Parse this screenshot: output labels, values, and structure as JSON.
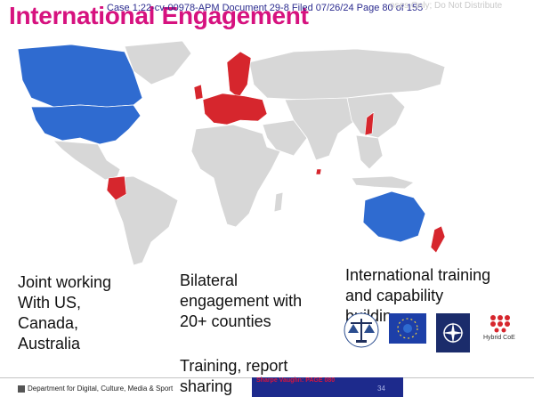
{
  "header": {
    "title": "International Engagement",
    "case_header": "Case 1:22-cv-00978-APM   Document 29-8   Filed 07/26/24   Page 80 of 155",
    "watermark": "oses Only; Do Not Distribute"
  },
  "map": {
    "land_color": "#d7d7d7",
    "border_color": "#ffffff",
    "highlight_blue": "#2f6bd0",
    "highlight_red": "#d6262d"
  },
  "columns": {
    "col1_lines": [
      "Joint working",
      "With US,",
      "Canada,",
      "Australia"
    ],
    "col2_lines": [
      "Bilateral",
      "engagement with",
      "20+ counties"
    ],
    "col2b_lines": [
      "Training, report",
      "sharing"
    ],
    "col3_lines": [
      "International training",
      "and capability",
      "buildin"
    ]
  },
  "logos": {
    "hybrid_coe_label": "Hybrid CoE"
  },
  "footer": {
    "department": "Department for Digital, Culture, Media & Sport",
    "exhibit_stamp": "Sharpe Vaughn: PAGE 080",
    "page_number": "34"
  }
}
